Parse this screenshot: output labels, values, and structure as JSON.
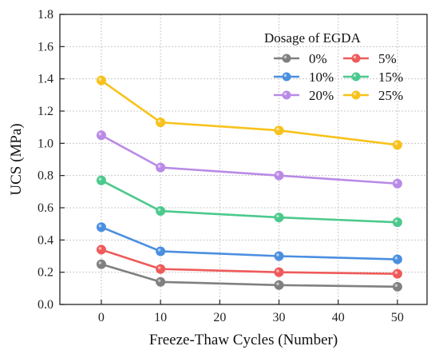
{
  "chart_data": {
    "type": "line",
    "xlabel": "Freeze-Thaw Cycles (Number)",
    "ylabel": "UCS (MPa)",
    "xlim": [
      -7,
      55
    ],
    "ylim": [
      0.0,
      1.8
    ],
    "xticks": [
      0,
      10,
      20,
      30,
      40,
      50
    ],
    "yticks": [
      0.0,
      0.2,
      0.4,
      0.6,
      0.8,
      1.0,
      1.2,
      1.4,
      1.6,
      1.8
    ],
    "grid": true,
    "legend_title": "Dosage of EGDA",
    "legend_position": "top-right",
    "x": [
      0,
      10,
      30,
      50
    ],
    "series": [
      {
        "name": "0%",
        "color": "#808080",
        "values": [
          0.25,
          0.14,
          0.12,
          0.11
        ]
      },
      {
        "name": "5%",
        "color": "#ef5a5a",
        "values": [
          0.34,
          0.22,
          0.2,
          0.19
        ]
      },
      {
        "name": "10%",
        "color": "#4a8fe0",
        "values": [
          0.48,
          0.33,
          0.3,
          0.28
        ]
      },
      {
        "name": "15%",
        "color": "#4cc98d",
        "values": [
          0.77,
          0.58,
          0.54,
          0.51
        ]
      },
      {
        "name": "20%",
        "color": "#b98ae6",
        "values": [
          1.05,
          0.85,
          0.8,
          0.75
        ]
      },
      {
        "name": "25%",
        "color": "#f8c21c",
        "values": [
          1.39,
          1.13,
          1.08,
          0.99
        ]
      }
    ]
  }
}
